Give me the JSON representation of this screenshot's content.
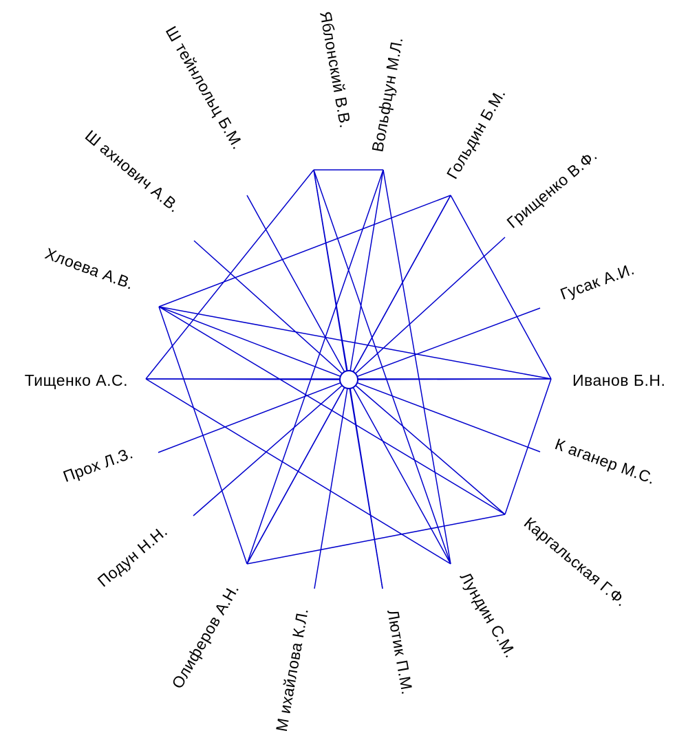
{
  "nodes": [
    {
      "id": "ivanov",
      "label": "Иванов Б.Н."
    },
    {
      "id": "gusak",
      "label": "Гусак А.И."
    },
    {
      "id": "grishchenko",
      "label": "Грищенко В.Ф."
    },
    {
      "id": "goldin",
      "label": "Гольдин Б.М."
    },
    {
      "id": "volftsun",
      "label": "Вольфцун М.Л."
    },
    {
      "id": "yablonsky",
      "label": "Яблонский В.В."
    },
    {
      "id": "shteinlolts",
      "label": "Ш тейнлольц Б.М."
    },
    {
      "id": "shakhnovich",
      "label": "Ш ахнович А.В."
    },
    {
      "id": "khloeva",
      "label": "Хлоева А.В."
    },
    {
      "id": "tishchenko",
      "label": "Тищенко А.С."
    },
    {
      "id": "prokh",
      "label": "Прох Л.З."
    },
    {
      "id": "podun",
      "label": "Подун Н.Н."
    },
    {
      "id": "oliferov",
      "label": "Олиферов А.Н."
    },
    {
      "id": "mikhailova",
      "label": "М ихайлова К.Л."
    },
    {
      "id": "lyutik",
      "label": "Лютик П.М."
    },
    {
      "id": "lundin",
      "label": "Лундин С.М."
    },
    {
      "id": "kargalskaya",
      "label": "Каргальская Г.Ф."
    },
    {
      "id": "kaganer",
      "label": "К аганер М.С."
    }
  ],
  "edges": [
    [
      "yablonsky",
      "volftsun"
    ],
    [
      "yablonsky",
      "tishchenko"
    ],
    [
      "yablonsky",
      "lyutik"
    ],
    [
      "yablonsky",
      "lundin"
    ],
    [
      "volftsun",
      "oliferov"
    ],
    [
      "volftsun",
      "lundin"
    ],
    [
      "goldin",
      "khloeva"
    ],
    [
      "goldin",
      "oliferov"
    ],
    [
      "goldin",
      "ivanov"
    ],
    [
      "khloeva",
      "ivanov"
    ],
    [
      "khloeva",
      "oliferov"
    ],
    [
      "khloeva",
      "kargalskaya"
    ],
    [
      "tishchenko",
      "ivanov"
    ],
    [
      "tishchenko",
      "lundin"
    ],
    [
      "oliferov",
      "kargalskaya"
    ],
    [
      "ivanov",
      "kargalskaya"
    ]
  ],
  "colors": {
    "edge": "#0000cc",
    "text": "#000000",
    "background": "#ffffff"
  }
}
